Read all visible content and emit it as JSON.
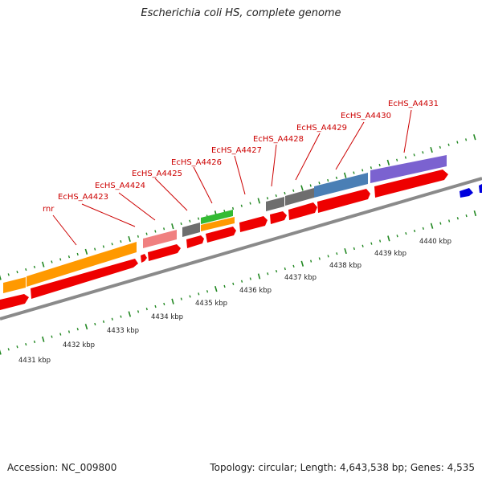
{
  "title": "Escherichia coli HS, complete genome",
  "footer": {
    "accession": "Accession: NC_009800",
    "summary": "Topology: circular; Length: 4,643,538 bp; Genes: 4,535"
  },
  "scale_labels": [
    "4431 kbp",
    "4432 kbp",
    "4433 kbp",
    "4434 kbp",
    "4435 kbp",
    "4436 kbp",
    "4437 kbp",
    "4438 kbp",
    "4439 kbp",
    "4440 kbp"
  ],
  "gene_labels": [
    "rnr",
    "EcHS_A4423",
    "EcHS_A4424",
    "EcHS_A4425",
    "EcHS_A4426",
    "EcHS_A4427",
    "EcHS_A4428",
    "EcHS_A4429",
    "EcHS_A4430",
    "EcHS_A4431"
  ],
  "colors": {
    "cds": "#ee0000",
    "rrna": "#ff9900",
    "trna": "#33bb33",
    "pseudo": "#f08080",
    "gray": "#6e6e6e",
    "steel": "#4a7fb5",
    "purple": "#7b62d0",
    "blue": "#0000dd",
    "label": "#cc0000",
    "tick": "#228822"
  }
}
